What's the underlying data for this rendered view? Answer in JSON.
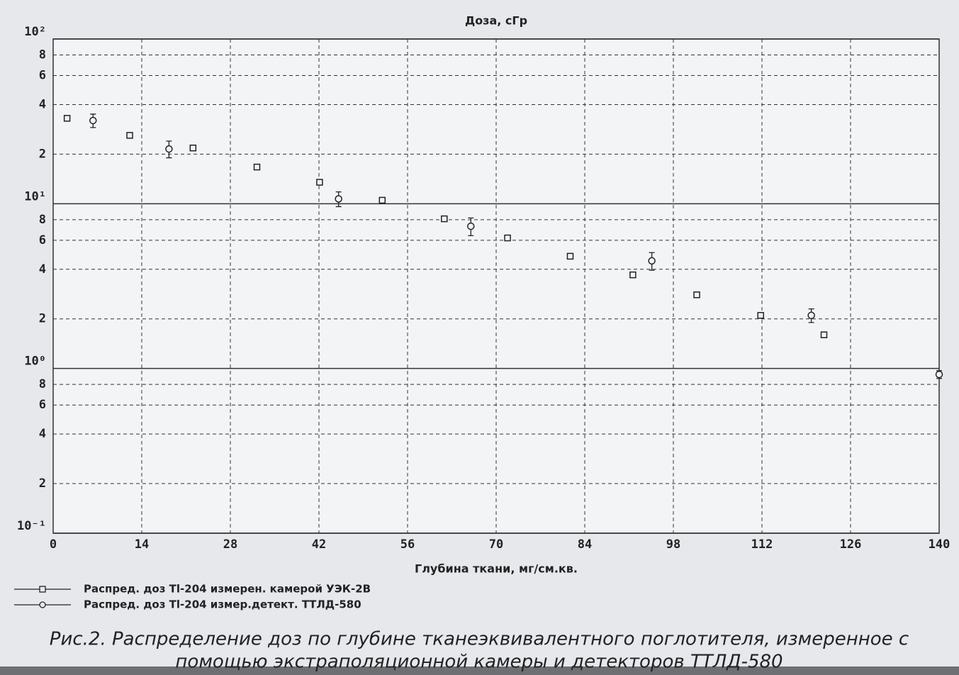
{
  "chart_data": {
    "type": "scatter",
    "title": "Доза, сГр",
    "x_label": "Глубина ткани, мг/см.кв.",
    "ylog": true,
    "grid": true,
    "xlim": [
      0,
      140
    ],
    "xticks": [
      0,
      14,
      28,
      42,
      56,
      70,
      84,
      98,
      112,
      126,
      140
    ],
    "ylim": [
      0.1,
      100
    ],
    "yticks": [
      {
        "value": 100,
        "label": "10²"
      },
      {
        "value": 80,
        "label": "8"
      },
      {
        "value": 60,
        "label": "6"
      },
      {
        "value": 40,
        "label": "4"
      },
      {
        "value": 20,
        "label": "2"
      },
      {
        "value": 10,
        "label": "10¹"
      },
      8,
      6,
      4,
      2,
      {
        "value": 1,
        "label": "10⁰"
      },
      {
        "value": 0.8,
        "label": "8"
      },
      {
        "value": 0.6,
        "label": "6"
      },
      {
        "value": 0.4,
        "label": "4"
      },
      {
        "value": 0.2,
        "label": "2"
      },
      {
        "value": 0.1,
        "label": "10⁻¹"
      }
    ],
    "series": [
      {
        "name": "Распред. доз Tl-204 измерен. камерой УЭК-2В",
        "marker": "square",
        "color": "#222",
        "x": [
          2.2,
          12.1,
          22.1,
          32.2,
          42.1,
          52,
          61.8,
          71.8,
          81.7,
          91.6,
          101.7,
          111.8,
          121.8
        ],
        "values": [
          33,
          26,
          21.8,
          16.7,
          13.5,
          10.5,
          8.1,
          6.2,
          4.8,
          3.7,
          2.8,
          2.1,
          1.6
        ]
      },
      {
        "name": "Распред. доз Tl-204 измер.детект. ТТЛД-580",
        "marker": "circle",
        "color": "#222",
        "x": [
          6.3,
          18.3,
          45.1,
          66,
          94.6,
          119.8,
          140
        ],
        "values": [
          32,
          21.5,
          10.7,
          7.3,
          4.5,
          2.1,
          0.92
        ],
        "errors": [
          3,
          2.5,
          1.1,
          0.9,
          0.55,
          0.2,
          0.05
        ]
      }
    ]
  },
  "caption_lines": [
    "Рис.2. Распределение доз по глубине тканеэквивалентного поглотителя, измеренное с",
    "помощью экстраполяционной камеры и детекторов ТТЛД-580"
  ]
}
